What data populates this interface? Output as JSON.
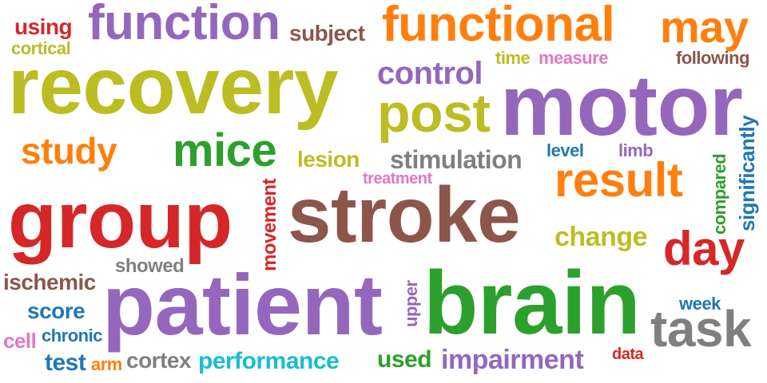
{
  "colors": {
    "purple": "#9467bd",
    "orange": "#ff7f0e",
    "olive": "#bcbd22",
    "red": "#d62728",
    "brown": "#8c564b",
    "green": "#2ca02c",
    "cyan": "#17becf",
    "blue": "#1f77b4",
    "pink": "#e377c2",
    "gray": "#7f7f7f"
  },
  "words": [
    {
      "text": "recovery",
      "color": "olive"
    },
    {
      "text": "motor",
      "color": "purple"
    },
    {
      "text": "stroke",
      "color": "brown"
    },
    {
      "text": "group",
      "color": "red"
    },
    {
      "text": "patient",
      "color": "purple"
    },
    {
      "text": "brain",
      "color": "green"
    },
    {
      "text": "functional",
      "color": "orange"
    },
    {
      "text": "function",
      "color": "purple"
    },
    {
      "text": "post",
      "color": "olive"
    },
    {
      "text": "task",
      "color": "gray"
    },
    {
      "text": "result",
      "color": "orange"
    },
    {
      "text": "mice",
      "color": "green"
    },
    {
      "text": "day",
      "color": "red"
    },
    {
      "text": "may",
      "color": "orange"
    },
    {
      "text": "study",
      "color": "orange"
    },
    {
      "text": "control",
      "color": "purple"
    },
    {
      "text": "change",
      "color": "olive"
    },
    {
      "text": "impairment",
      "color": "purple"
    },
    {
      "text": "performance",
      "color": "cyan"
    },
    {
      "text": "stimulation",
      "color": "gray"
    },
    {
      "text": "subject",
      "color": "brown"
    },
    {
      "text": "ischemic",
      "color": "brown"
    },
    {
      "text": "cortex",
      "color": "gray"
    },
    {
      "text": "score",
      "color": "blue"
    },
    {
      "text": "following",
      "color": "brown"
    },
    {
      "text": "used",
      "color": "green"
    },
    {
      "text": "lesion",
      "color": "olive"
    },
    {
      "text": "significantly",
      "color": "blue"
    },
    {
      "text": "test",
      "color": "blue"
    },
    {
      "text": "showed",
      "color": "gray"
    },
    {
      "text": "movement",
      "color": "red"
    },
    {
      "text": "compared",
      "color": "green"
    },
    {
      "text": "using",
      "color": "red"
    },
    {
      "text": "cortical",
      "color": "olive"
    },
    {
      "text": "measure",
      "color": "pink"
    },
    {
      "text": "time",
      "color": "olive"
    },
    {
      "text": "level",
      "color": "blue"
    },
    {
      "text": "limb",
      "color": "purple"
    },
    {
      "text": "treatment",
      "color": "pink"
    },
    {
      "text": "upper",
      "color": "purple"
    },
    {
      "text": "week",
      "color": "blue"
    },
    {
      "text": "chronic",
      "color": "blue"
    },
    {
      "text": "cell",
      "color": "pink"
    },
    {
      "text": "arm",
      "color": "orange"
    },
    {
      "text": "data",
      "color": "red"
    }
  ]
}
